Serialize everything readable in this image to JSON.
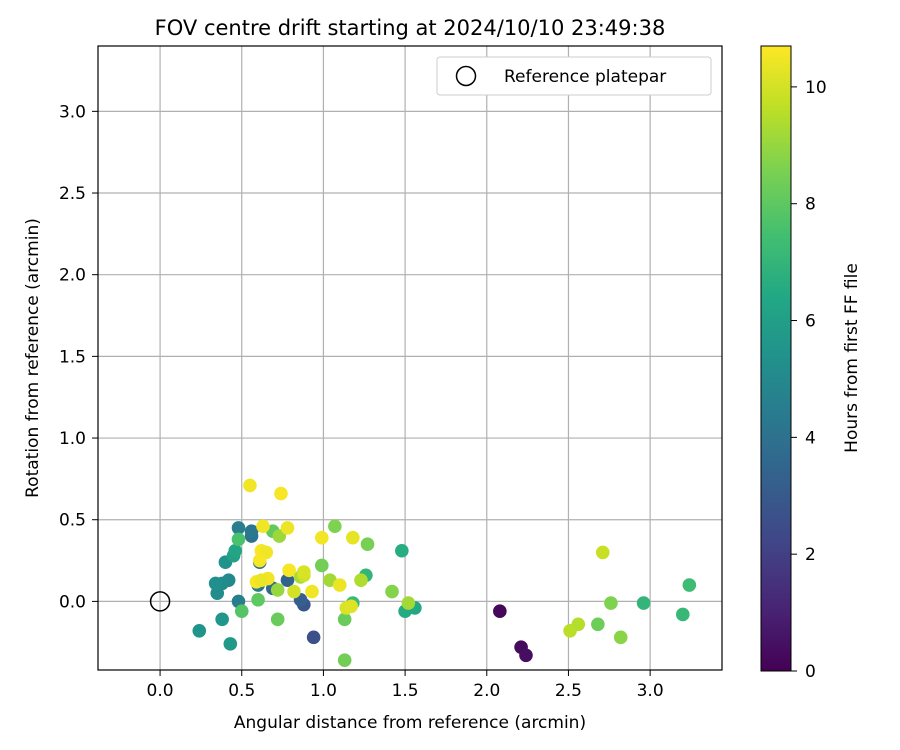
{
  "chart_data": {
    "type": "scatter",
    "title": "FOV centre drift starting at 2024/10/10 23:49:38",
    "xlabel": "Angular distance from reference (arcmin)",
    "ylabel": "Rotation from reference (arcmin)",
    "xlim": [
      -0.38,
      3.44
    ],
    "ylim": [
      -0.42,
      3.4
    ],
    "xticks": [
      "0.0",
      "0.5",
      "1.0",
      "1.5",
      "2.0",
      "2.5",
      "3.0"
    ],
    "xtick_values": [
      0,
      0.5,
      1.0,
      1.5,
      2.0,
      2.5,
      3.0
    ],
    "yticks": [
      "0.0",
      "0.5",
      "1.0",
      "1.5",
      "2.0",
      "2.5",
      "3.0"
    ],
    "ytick_values": [
      0,
      0.5,
      1.0,
      1.5,
      2.0,
      2.5,
      3.0
    ],
    "grid": true,
    "legend": {
      "position": "top-right",
      "label": "Reference platepar"
    },
    "reference_point": {
      "x": 0.0,
      "y": 0.0,
      "marker": "open-circle"
    },
    "colorbar": {
      "label": "Hours from first FF file",
      "colormap": "viridis",
      "range": [
        0,
        10.7
      ],
      "ticks": [
        "0",
        "2",
        "4",
        "6",
        "8",
        "10"
      ],
      "tick_values": [
        0,
        2,
        4,
        6,
        8,
        10
      ]
    },
    "series": [
      {
        "points": [
          {
            "x": 2.08,
            "y": -0.06,
            "c": 0.2
          },
          {
            "x": 2.21,
            "y": -0.28,
            "c": 0.3
          },
          {
            "x": 2.24,
            "y": -0.33,
            "c": 0.4
          },
          {
            "x": 0.94,
            "y": -0.22,
            "c": 2.6
          },
          {
            "x": 0.88,
            "y": -0.02,
            "c": 2.8
          },
          {
            "x": 0.86,
            "y": 0.01,
            "c": 3.2
          },
          {
            "x": 0.78,
            "y": 0.13,
            "c": 3.4
          },
          {
            "x": 0.69,
            "y": 0.08,
            "c": 3.7
          },
          {
            "x": 0.61,
            "y": 0.24,
            "c": 3.9
          },
          {
            "x": 0.56,
            "y": 0.4,
            "c": 4.1
          },
          {
            "x": 0.56,
            "y": 0.43,
            "c": 4.3
          },
          {
            "x": 0.6,
            "y": 0.1,
            "c": 4.4
          },
          {
            "x": 0.48,
            "y": 0.45,
            "c": 4.5
          },
          {
            "x": 0.48,
            "y": 0.0,
            "c": 4.6
          },
          {
            "x": 0.42,
            "y": 0.13,
            "c": 5.0
          },
          {
            "x": 0.38,
            "y": 0.11,
            "c": 5.1
          },
          {
            "x": 0.35,
            "y": 0.05,
            "c": 5.2
          },
          {
            "x": 0.34,
            "y": 0.11,
            "c": 5.3
          },
          {
            "x": 0.4,
            "y": 0.24,
            "c": 5.4
          },
          {
            "x": 0.24,
            "y": -0.18,
            "c": 5.5
          },
          {
            "x": 0.38,
            "y": -0.11,
            "c": 5.6
          },
          {
            "x": 0.43,
            "y": -0.26,
            "c": 5.7
          },
          {
            "x": 0.45,
            "y": 0.28,
            "c": 6.1
          },
          {
            "x": 0.46,
            "y": 0.31,
            "c": 6.3
          },
          {
            "x": 1.48,
            "y": 0.31,
            "c": 6.6
          },
          {
            "x": 1.5,
            "y": -0.06,
            "c": 6.5
          },
          {
            "x": 1.56,
            "y": -0.04,
            "c": 6.4
          },
          {
            "x": 2.96,
            "y": -0.01,
            "c": 7.0
          },
          {
            "x": 3.2,
            "y": -0.08,
            "c": 7.1
          },
          {
            "x": 3.24,
            "y": 0.1,
            "c": 7.3
          },
          {
            "x": 1.26,
            "y": 0.16,
            "c": 7.0
          },
          {
            "x": 1.18,
            "y": -0.01,
            "c": 7.2
          },
          {
            "x": 0.48,
            "y": 0.38,
            "c": 7.6
          },
          {
            "x": 0.5,
            "y": -0.06,
            "c": 7.8
          },
          {
            "x": 0.6,
            "y": 0.01,
            "c": 8.0
          },
          {
            "x": 0.69,
            "y": 0.43,
            "c": 8.1
          },
          {
            "x": 0.72,
            "y": -0.11,
            "c": 8.2
          },
          {
            "x": 0.99,
            "y": 0.22,
            "c": 8.4
          },
          {
            "x": 1.07,
            "y": 0.46,
            "c": 8.6
          },
          {
            "x": 1.13,
            "y": -0.11,
            "c": 8.2
          },
          {
            "x": 1.13,
            "y": -0.36,
            "c": 8.4
          },
          {
            "x": 1.27,
            "y": 0.35,
            "c": 8.5
          },
          {
            "x": 1.42,
            "y": 0.06,
            "c": 8.7
          },
          {
            "x": 2.68,
            "y": -0.14,
            "c": 8.3
          },
          {
            "x": 2.76,
            "y": -0.01,
            "c": 8.6
          },
          {
            "x": 2.82,
            "y": -0.22,
            "c": 8.8
          },
          {
            "x": 0.73,
            "y": 0.4,
            "c": 9.1
          },
          {
            "x": 0.72,
            "y": 0.07,
            "c": 9.0
          },
          {
            "x": 0.86,
            "y": 0.15,
            "c": 9.3
          },
          {
            "x": 1.04,
            "y": 0.13,
            "c": 9.2
          },
          {
            "x": 1.23,
            "y": 0.13,
            "c": 9.4
          },
          {
            "x": 1.52,
            "y": -0.01,
            "c": 9.2
          },
          {
            "x": 2.51,
            "y": -0.18,
            "c": 9.6
          },
          {
            "x": 2.56,
            "y": -0.14,
            "c": 9.5
          },
          {
            "x": 2.71,
            "y": 0.3,
            "c": 9.8
          },
          {
            "x": 0.88,
            "y": 0.16,
            "c": 9.9
          },
          {
            "x": 0.82,
            "y": 0.06,
            "c": 10.0
          },
          {
            "x": 0.88,
            "y": 0.18,
            "c": 10.1
          },
          {
            "x": 1.14,
            "y": -0.04,
            "c": 10.1
          },
          {
            "x": 1.17,
            "y": -0.03,
            "c": 10.2
          },
          {
            "x": 1.18,
            "y": 0.39,
            "c": 10.3
          },
          {
            "x": 1.1,
            "y": 0.1,
            "c": 10.4
          },
          {
            "x": 0.55,
            "y": 0.71,
            "c": 10.5
          },
          {
            "x": 0.74,
            "y": 0.66,
            "c": 10.6
          },
          {
            "x": 0.63,
            "y": 0.46,
            "c": 10.5
          },
          {
            "x": 0.78,
            "y": 0.45,
            "c": 10.4
          },
          {
            "x": 0.99,
            "y": 0.39,
            "c": 10.5
          },
          {
            "x": 0.62,
            "y": 0.31,
            "c": 10.6
          },
          {
            "x": 0.65,
            "y": 0.3,
            "c": 10.5
          },
          {
            "x": 0.61,
            "y": 0.25,
            "c": 10.6
          },
          {
            "x": 0.79,
            "y": 0.19,
            "c": 10.6
          },
          {
            "x": 0.66,
            "y": 0.14,
            "c": 10.5
          },
          {
            "x": 0.59,
            "y": 0.12,
            "c": 10.6
          },
          {
            "x": 0.62,
            "y": 0.13,
            "c": 10.4
          },
          {
            "x": 0.93,
            "y": 0.06,
            "c": 10.5
          }
        ]
      }
    ]
  }
}
